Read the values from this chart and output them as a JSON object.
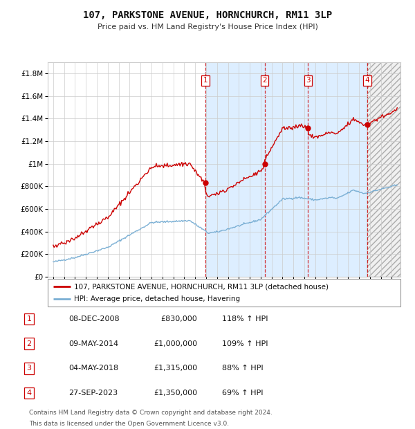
{
  "title": "107, PARKSTONE AVENUE, HORNCHURCH, RM11 3LP",
  "subtitle": "Price paid vs. HM Land Registry's House Price Index (HPI)",
  "legend_line1": "107, PARKSTONE AVENUE, HORNCHURCH, RM11 3LP (detached house)",
  "legend_line2": "HPI: Average price, detached house, Havering",
  "transactions": [
    {
      "num": 1,
      "date": "08-DEC-2008",
      "price": 830000,
      "pct": "118%",
      "dir": "↑",
      "year": 2008.92
    },
    {
      "num": 2,
      "date": "09-MAY-2014",
      "price": 1000000,
      "pct": "109%",
      "dir": "↑",
      "year": 2014.36
    },
    {
      "num": 3,
      "date": "04-MAY-2018",
      "price": 1315000,
      "pct": "88%",
      "dir": "↑",
      "year": 2018.34
    },
    {
      "num": 4,
      "date": "27-SEP-2023",
      "price": 1350000,
      "pct": "69%",
      "dir": "↑",
      "year": 2023.74
    }
  ],
  "footnote1": "Contains HM Land Registry data © Crown copyright and database right 2024.",
  "footnote2": "This data is licensed under the Open Government Licence v3.0.",
  "red_color": "#cc0000",
  "blue_color": "#7aafd4",
  "background_color": "#ffffff",
  "grid_color": "#cccccc",
  "highlight_color": "#ddeeff",
  "ylim": [
    0,
    1900000
  ],
  "xlim_start": 1994.5,
  "xlim_end": 2026.8,
  "yticks": [
    0,
    200000,
    400000,
    600000,
    800000,
    1000000,
    1200000,
    1400000,
    1600000,
    1800000
  ],
  "xticks": [
    1995,
    1996,
    1997,
    1998,
    1999,
    2000,
    2001,
    2002,
    2003,
    2004,
    2005,
    2006,
    2007,
    2008,
    2009,
    2010,
    2011,
    2012,
    2013,
    2014,
    2015,
    2016,
    2017,
    2018,
    2019,
    2020,
    2021,
    2022,
    2023,
    2024,
    2025,
    2026
  ]
}
